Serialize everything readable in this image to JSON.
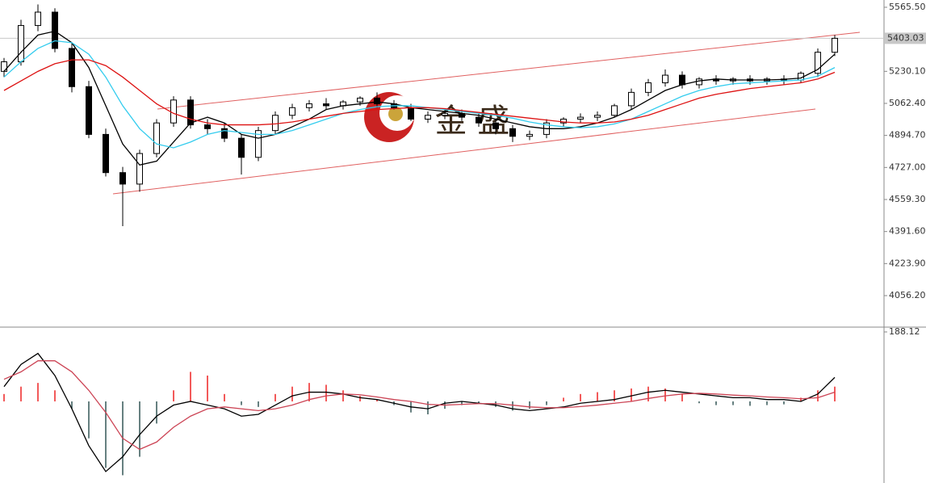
{
  "chart_data": [
    {
      "type": "candlestick",
      "watermark": "金 盛",
      "ylim": [
        3891.3,
        5603.5
      ],
      "yticks": [
        {
          "value": 5565.5,
          "label": "5565.50"
        },
        {
          "value": 5230.1,
          "label": "5230.10"
        },
        {
          "value": 5062.4,
          "label": "5062.40"
        },
        {
          "value": 4894.7,
          "label": "4894.70"
        },
        {
          "value": 4727,
          "label": "4727.00"
        },
        {
          "value": 4559.3,
          "label": "4559.30"
        },
        {
          "value": 4391.6,
          "label": "4391.60"
        },
        {
          "value": 4223.9,
          "label": "4223.90"
        },
        {
          "value": 4056.2,
          "label": "4056.20"
        }
      ],
      "last_price": {
        "value": 5403.03,
        "label": "5403.03"
      },
      "up_color": "#ffffff",
      "down_color": "#000000",
      "open": [
        5230,
        5280,
        5470,
        5540,
        5350,
        5150,
        4900,
        4700,
        4640,
        4800,
        4960,
        5080,
        4950,
        4930,
        4880,
        4780,
        4920,
        5000,
        5040,
        5060,
        5050,
        5070,
        5090,
        5060,
        5040,
        4980,
        5000,
        5010,
        4990,
        4960,
        4930,
        4890,
        4900,
        4960,
        4980,
        4990,
        5000,
        5050,
        5120,
        5170,
        5210,
        5160,
        5190,
        5180,
        5190,
        5180,
        5190,
        5185,
        5220,
        5330
      ],
      "high": [
        5300,
        5500,
        5580,
        5560,
        5380,
        5180,
        4930,
        4730,
        4820,
        4980,
        5100,
        5100,
        4980,
        4960,
        4900,
        4940,
        5020,
        5060,
        5080,
        5090,
        5080,
        5100,
        5120,
        5080,
        5060,
        5020,
        5030,
        5030,
        5010,
        4980,
        4950,
        4920,
        4980,
        4990,
        5010,
        5020,
        5060,
        5140,
        5190,
        5240,
        5230,
        5200,
        5210,
        5200,
        5210,
        5200,
        5210,
        5230,
        5350,
        5420
      ],
      "low": [
        5200,
        5260,
        5440,
        5330,
        5120,
        4880,
        4680,
        4420,
        4600,
        4780,
        4940,
        4930,
        4900,
        4860,
        4690,
        4760,
        4900,
        4980,
        5020,
        5030,
        5030,
        5050,
        5040,
        5030,
        4970,
        4960,
        4980,
        4970,
        4940,
        4900,
        4860,
        4870,
        4880,
        4940,
        4960,
        4970,
        4990,
        5030,
        5100,
        5150,
        5140,
        5140,
        5160,
        5160,
        5160,
        5160,
        5160,
        5170,
        5200,
        5310
      ],
      "close": [
        5280,
        5470,
        5540,
        5350,
        5150,
        4900,
        4700,
        4640,
        4800,
        4960,
        5080,
        4950,
        4930,
        4880,
        4780,
        4920,
        5000,
        5040,
        5060,
        5050,
        5070,
        5090,
        5060,
        5040,
        4980,
        5000,
        5010,
        4990,
        4960,
        4930,
        4890,
        4900,
        4960,
        4980,
        4990,
        5000,
        5050,
        5120,
        5170,
        5210,
        5160,
        5190,
        5180,
        5190,
        5180,
        5190,
        5185,
        5220,
        5330,
        5403.03
      ],
      "series": [
        {
          "color": "#000000",
          "values": [
            5230,
            5330,
            5420,
            5440,
            5380,
            5250,
            5050,
            4850,
            4740,
            4760,
            4860,
            4960,
            4990,
            4960,
            4900,
            4880,
            4900,
            4940,
            4980,
            5030,
            5050,
            5060,
            5070,
            5060,
            5040,
            5030,
            5020,
            5010,
            5000,
            4980,
            4960,
            4940,
            4930,
            4930,
            4940,
            4960,
            4990,
            5030,
            5080,
            5130,
            5160,
            5180,
            5190,
            5185,
            5185,
            5185,
            5188,
            5195,
            5240,
            5320
          ]
        },
        {
          "color": "#33ccee",
          "values": [
            5200,
            5280,
            5350,
            5390,
            5380,
            5320,
            5200,
            5050,
            4930,
            4850,
            4830,
            4860,
            4900,
            4920,
            4910,
            4900,
            4900,
            4920,
            4950,
            4980,
            5010,
            5030,
            5045,
            5050,
            5050,
            5040,
            5030,
            5020,
            5010,
            5000,
            4985,
            4965,
            4950,
            4940,
            4935,
            4940,
            4955,
            4980,
            5020,
            5060,
            5100,
            5130,
            5150,
            5165,
            5170,
            5175,
            5180,
            5185,
            5205,
            5250
          ]
        },
        {
          "color": "#dd1111",
          "values": [
            5130,
            5180,
            5230,
            5270,
            5290,
            5290,
            5260,
            5200,
            5130,
            5060,
            5010,
            4980,
            4960,
            4950,
            4950,
            4950,
            4955,
            4965,
            4980,
            4995,
            5010,
            5020,
            5030,
            5035,
            5040,
            5040,
            5035,
            5025,
            5015,
            5005,
            4995,
            4985,
            4975,
            4965,
            4960,
            4960,
            4965,
            4980,
            5000,
            5030,
            5060,
            5090,
            5110,
            5125,
            5140,
            5150,
            5160,
            5170,
            5190,
            5225
          ]
        }
      ]
    },
    {
      "type": "macd",
      "ylim": [
        -221,
        199
      ],
      "yticks": [
        188.12
      ],
      "histogram": {
        "up_color": "#ee2222",
        "down_color": "#335555",
        "values": [
          20,
          40,
          50,
          30,
          -20,
          -100,
          -180,
          -200,
          -150,
          -60,
          30,
          80,
          70,
          20,
          -10,
          -15,
          20,
          40,
          50,
          45,
          30,
          15,
          5,
          -10,
          -30,
          -35,
          -20,
          -10,
          -5,
          -15,
          -25,
          -20,
          -10,
          10,
          20,
          25,
          30,
          35,
          40,
          35,
          20,
          -5,
          -10,
          -10,
          -12,
          -10,
          -8,
          10,
          30,
          40
        ]
      },
      "series": [
        {
          "color": "#000000",
          "values": [
            40,
            100,
            130,
            70,
            -20,
            -120,
            -190,
            -150,
            -90,
            -40,
            -10,
            0,
            -10,
            -20,
            -40,
            -35,
            -10,
            15,
            25,
            25,
            20,
            10,
            5,
            -5,
            -15,
            -20,
            -5,
            0,
            -5,
            -10,
            -20,
            -25,
            -20,
            -15,
            -5,
            0,
            5,
            15,
            25,
            30,
            25,
            20,
            15,
            10,
            10,
            5,
            5,
            0,
            20,
            65
          ]
        },
        {
          "color": "#cc4455",
          "values": [
            60,
            80,
            110,
            110,
            80,
            30,
            -30,
            -100,
            -130,
            -110,
            -70,
            -40,
            -20,
            -15,
            -20,
            -25,
            -20,
            -10,
            5,
            15,
            20,
            18,
            12,
            5,
            0,
            -8,
            -10,
            -8,
            -6,
            -6,
            -10,
            -15,
            -17,
            -17,
            -14,
            -10,
            -5,
            0,
            8,
            15,
            20,
            22,
            20,
            17,
            15,
            12,
            10,
            7,
            10,
            25
          ]
        }
      ]
    }
  ]
}
